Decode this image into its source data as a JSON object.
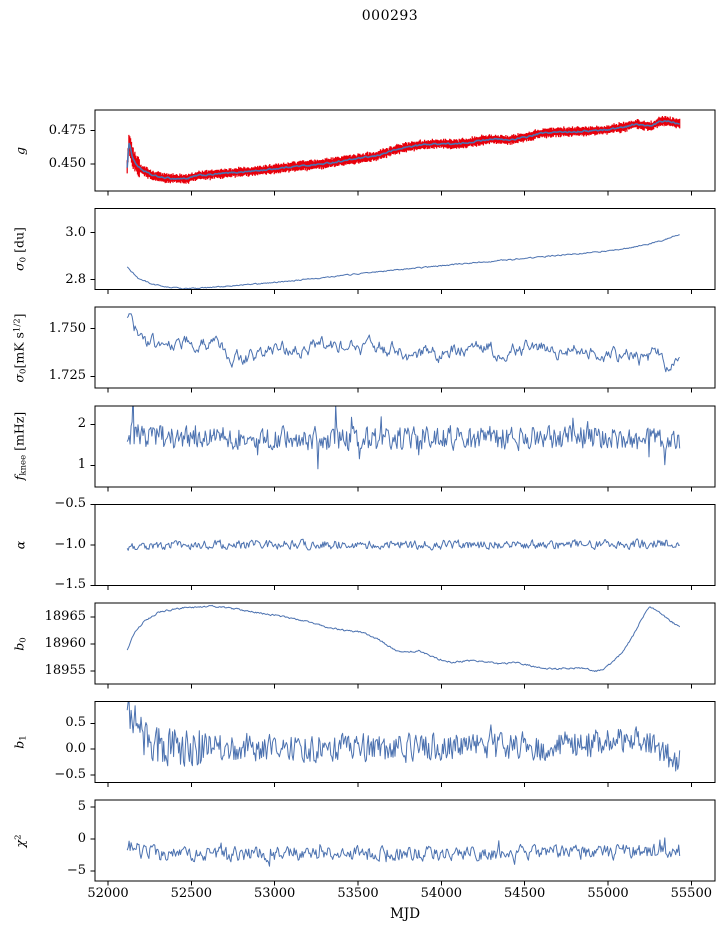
{
  "chart_data": {
    "type": "line",
    "title": "000293",
    "xlabel": "MJD",
    "xlim": [
      51922,
      55642
    ],
    "data_start_mjd": 52115,
    "data_end_mjd": 55430,
    "line_color": "#4c72b0",
    "error_color": "#e8000b",
    "axis_color": "#000000",
    "text_color": "#000000",
    "grid": false,
    "legend": "none",
    "xticks": [
      {
        "v": 52000,
        "label": "52000"
      },
      {
        "v": 52500,
        "label": "52500"
      },
      {
        "v": 53000,
        "label": "53000"
      },
      {
        "v": 53500,
        "label": "53500"
      },
      {
        "v": 54000,
        "label": "54000"
      },
      {
        "v": 54500,
        "label": "54500"
      },
      {
        "v": 55000,
        "label": "55000"
      },
      {
        "v": 55500,
        "label": "55500"
      }
    ],
    "panels": [
      {
        "name": "g",
        "ylabel_segments": [
          {
            "t": "g",
            "i": true
          }
        ],
        "ylim": [
          0.4295,
          0.4905
        ],
        "yticks": [
          {
            "v": 0.45,
            "label": "0.450"
          },
          {
            "v": 0.475,
            "label": "0.475"
          }
        ],
        "color": "#4c72b0",
        "line_width": 1.6,
        "noise": {
          "amp": 0.0005,
          "rho": 0.5
        },
        "red_band": {
          "half": 0.0022,
          "jitter": 0.0016,
          "center_jitter": 0.0012,
          "wide_until": 52190,
          "wide_factor": 2.2,
          "color": "#e8000b"
        },
        "trend": [
          [
            52115,
            0.4475
          ],
          [
            52125,
            0.4655
          ],
          [
            52135,
            0.462
          ],
          [
            52145,
            0.456
          ],
          [
            52160,
            0.4515
          ],
          [
            52180,
            0.448
          ],
          [
            52210,
            0.445
          ],
          [
            52260,
            0.4415
          ],
          [
            52330,
            0.4395
          ],
          [
            52400,
            0.4388
          ],
          [
            52480,
            0.439
          ],
          [
            52540,
            0.4412
          ],
          [
            52600,
            0.4416
          ],
          [
            52700,
            0.4428
          ],
          [
            52800,
            0.4438
          ],
          [
            52900,
            0.4448
          ],
          [
            53000,
            0.4462
          ],
          [
            53100,
            0.4478
          ],
          [
            53200,
            0.4488
          ],
          [
            53300,
            0.45
          ],
          [
            53400,
            0.452
          ],
          [
            53500,
            0.454
          ],
          [
            53600,
            0.4556
          ],
          [
            53700,
            0.4596
          ],
          [
            53800,
            0.4628
          ],
          [
            53900,
            0.4645
          ],
          [
            54000,
            0.4652
          ],
          [
            54100,
            0.4648
          ],
          [
            54200,
            0.4668
          ],
          [
            54300,
            0.4688
          ],
          [
            54400,
            0.4678
          ],
          [
            54500,
            0.4698
          ],
          [
            54600,
            0.473
          ],
          [
            54700,
            0.4738
          ],
          [
            54800,
            0.4743
          ],
          [
            54900,
            0.4748
          ],
          [
            55000,
            0.4758
          ],
          [
            55100,
            0.4778
          ],
          [
            55160,
            0.4798
          ],
          [
            55220,
            0.4788
          ],
          [
            55260,
            0.4782
          ],
          [
            55310,
            0.4818
          ],
          [
            55360,
            0.4822
          ],
          [
            55430,
            0.4802
          ]
        ]
      },
      {
        "name": "sigma0_du",
        "ylabel_segments": [
          {
            "t": "σ",
            "i": true
          },
          {
            "t": "0",
            "sub": true
          },
          {
            "t": " [du]"
          }
        ],
        "ylim": [
          2.757,
          3.103
        ],
        "yticks": [
          {
            "v": 2.8,
            "label": "2.8"
          },
          {
            "v": 3.0,
            "label": "3.0"
          }
        ],
        "color": "#4c72b0",
        "line_width": 1.0,
        "noise": {
          "amp": 0.0022,
          "rho": 0.45
        },
        "trend": [
          [
            52115,
            2.852
          ],
          [
            52180,
            2.806
          ],
          [
            52260,
            2.782
          ],
          [
            52350,
            2.768
          ],
          [
            52450,
            2.762
          ],
          [
            52550,
            2.763
          ],
          [
            52650,
            2.768
          ],
          [
            52800,
            2.776
          ],
          [
            53000,
            2.788
          ],
          [
            53200,
            2.801
          ],
          [
            53400,
            2.817
          ],
          [
            53600,
            2.832
          ],
          [
            53800,
            2.845
          ],
          [
            54000,
            2.859
          ],
          [
            54200,
            2.872
          ],
          [
            54400,
            2.884
          ],
          [
            54600,
            2.897
          ],
          [
            54800,
            2.909
          ],
          [
            55000,
            2.922
          ],
          [
            55150,
            2.938
          ],
          [
            55250,
            2.952
          ],
          [
            55350,
            2.972
          ],
          [
            55430,
            2.993
          ]
        ]
      },
      {
        "name": "sigma0_mK",
        "ylabel_segments": [
          {
            "t": "σ",
            "i": true
          },
          {
            "t": "0",
            "sub": true
          },
          {
            "t": "[mK s"
          },
          {
            "t": "1/2",
            "sup": true
          },
          {
            "t": "]"
          }
        ],
        "ylim": [
          1.7188,
          1.7612
        ],
        "yticks": [
          {
            "v": 1.725,
            "label": "1.725"
          },
          {
            "v": 1.75,
            "label": "1.750"
          }
        ],
        "color": "#4c72b0",
        "line_width": 1.0,
        "noise": {
          "amp": 0.003,
          "rho": 0.7
        },
        "trend": [
          [
            52115,
            1.7565
          ],
          [
            52150,
            1.752
          ],
          [
            52200,
            1.7428
          ],
          [
            52300,
            1.7415
          ],
          [
            52400,
            1.7432
          ],
          [
            52500,
            1.744
          ],
          [
            52600,
            1.7408
          ],
          [
            52700,
            1.738
          ],
          [
            52800,
            1.7342
          ],
          [
            52900,
            1.736
          ],
          [
            53000,
            1.7392
          ],
          [
            53100,
            1.7378
          ],
          [
            53200,
            1.74
          ],
          [
            53300,
            1.742
          ],
          [
            53400,
            1.7408
          ],
          [
            53500,
            1.7392
          ],
          [
            53600,
            1.741
          ],
          [
            53700,
            1.739
          ],
          [
            53800,
            1.7362
          ],
          [
            53900,
            1.738
          ],
          [
            54000,
            1.7372
          ],
          [
            54100,
            1.7392
          ],
          [
            54200,
            1.7418
          ],
          [
            54300,
            1.739
          ],
          [
            54400,
            1.7372
          ],
          [
            54500,
            1.7392
          ],
          [
            54600,
            1.7408
          ],
          [
            54700,
            1.7382
          ],
          [
            54800,
            1.7392
          ],
          [
            54900,
            1.7372
          ],
          [
            55000,
            1.7362
          ],
          [
            55100,
            1.7372
          ],
          [
            55200,
            1.7342
          ],
          [
            55300,
            1.7362
          ],
          [
            55360,
            1.7312
          ],
          [
            55430,
            1.7295
          ]
        ]
      },
      {
        "name": "f_knee",
        "ylabel_segments": [
          {
            "t": "f",
            "i": true
          },
          {
            "t": "knee",
            "sub": true
          },
          {
            "t": " [mHz]"
          }
        ],
        "ylim": [
          0.48,
          2.45
        ],
        "yticks": [
          {
            "v": 1,
            "label": "1"
          },
          {
            "v": 2,
            "label": "2"
          }
        ],
        "color": "#4c72b0",
        "line_width": 1.0,
        "noise": {
          "amp": 0.27,
          "rho": 0.15,
          "spike_prob": 0.035,
          "spike_amp": 0.7
        },
        "events": [
          [
            52150,
            0.8
          ]
        ],
        "trend": [
          [
            52115,
            1.8
          ],
          [
            52200,
            1.72
          ],
          [
            52400,
            1.68
          ],
          [
            53000,
            1.66
          ],
          [
            54000,
            1.65
          ],
          [
            54700,
            1.7
          ],
          [
            55000,
            1.68
          ],
          [
            55430,
            1.6
          ]
        ]
      },
      {
        "name": "alpha",
        "ylabel_segments": [
          {
            "t": "α",
            "i": true
          }
        ],
        "ylim": [
          -1.5,
          -0.5
        ],
        "yticks": [
          {
            "v": -1.5,
            "label": "−1.5"
          },
          {
            "v": -1.0,
            "label": "−1.0"
          },
          {
            "v": -0.5,
            "label": "−0.5"
          }
        ],
        "color": "#4c72b0",
        "line_width": 1.0,
        "noise": {
          "amp": 0.05,
          "rho": 0.35
        },
        "trend": [
          [
            52115,
            -1.005
          ],
          [
            52500,
            -1.0
          ],
          [
            53000,
            -0.992
          ],
          [
            53500,
            -1.0
          ],
          [
            54000,
            -0.996
          ],
          [
            54500,
            -1.0
          ],
          [
            55000,
            -0.993
          ],
          [
            55430,
            -0.98
          ]
        ]
      },
      {
        "name": "b0",
        "ylabel_segments": [
          {
            "t": "b",
            "i": true
          },
          {
            "t": "0",
            "sub": true
          }
        ],
        "ylim": [
          18952.6,
          18967.6
        ],
        "yticks": [
          {
            "v": 18955,
            "label": "18955"
          },
          {
            "v": 18960,
            "label": "18960"
          },
          {
            "v": 18965,
            "label": "18965"
          }
        ],
        "color": "#4c72b0",
        "line_width": 1.0,
        "noise": {
          "amp": 0.14,
          "rho": 0.45
        },
        "trend": [
          [
            52115,
            18959.0
          ],
          [
            52160,
            18962.2
          ],
          [
            52220,
            18964.3
          ],
          [
            52300,
            18965.8
          ],
          [
            52400,
            18966.5
          ],
          [
            52500,
            18966.8
          ],
          [
            52620,
            18967.0
          ],
          [
            52720,
            18966.7
          ],
          [
            52820,
            18966.2
          ],
          [
            52920,
            18965.7
          ],
          [
            53020,
            18965.2
          ],
          [
            53120,
            18964.7
          ],
          [
            53220,
            18963.9
          ],
          [
            53320,
            18963.1
          ],
          [
            53420,
            18962.5
          ],
          [
            53520,
            18962.2
          ],
          [
            53620,
            18960.9
          ],
          [
            53720,
            18958.9
          ],
          [
            53800,
            18958.5
          ],
          [
            53870,
            18958.8
          ],
          [
            53960,
            18957.4
          ],
          [
            54060,
            18956.6
          ],
          [
            54160,
            18956.9
          ],
          [
            54260,
            18956.8
          ],
          [
            54360,
            18956.3
          ],
          [
            54460,
            18956.6
          ],
          [
            54560,
            18955.8
          ],
          [
            54660,
            18955.4
          ],
          [
            54760,
            18955.5
          ],
          [
            54860,
            18955.6
          ],
          [
            54920,
            18954.9
          ],
          [
            54970,
            18955.3
          ],
          [
            55030,
            18956.8
          ],
          [
            55090,
            18958.6
          ],
          [
            55150,
            18961.5
          ],
          [
            55200,
            18964.6
          ],
          [
            55250,
            18966.9
          ],
          [
            55300,
            18966.2
          ],
          [
            55360,
            18964.6
          ],
          [
            55430,
            18963.1
          ]
        ]
      },
      {
        "name": "b1",
        "ylabel_segments": [
          {
            "t": "b",
            "i": true
          },
          {
            "t": "1",
            "sub": true
          }
        ],
        "ylim": [
          -0.65,
          0.92
        ],
        "yticks": [
          {
            "v": -0.5,
            "label": "−0.5"
          },
          {
            "v": 0.0,
            "label": "0.0"
          },
          {
            "v": 0.5,
            "label": "0.5"
          }
        ],
        "color": "#4c72b0",
        "line_width": 1.0,
        "noise": {
          "amp": 0.26,
          "rho": 0.2,
          "spike_prob": 0.05,
          "spike_amp": 0.3,
          "early_boost": [
            52600,
            1.5
          ]
        },
        "trend": [
          [
            52115,
            0.76
          ],
          [
            52150,
            0.55
          ],
          [
            52200,
            0.28
          ],
          [
            52260,
            0.12
          ],
          [
            52350,
            0.06
          ],
          [
            52500,
            0.05
          ],
          [
            53000,
            0.03
          ],
          [
            53600,
            0.02
          ],
          [
            54200,
            0.03
          ],
          [
            54700,
            0.06
          ],
          [
            54950,
            0.12
          ],
          [
            55100,
            0.22
          ],
          [
            55200,
            0.26
          ],
          [
            55280,
            0.05
          ],
          [
            55340,
            -0.12
          ],
          [
            55430,
            -0.25
          ]
        ]
      },
      {
        "name": "chi2",
        "ylabel_segments": [
          {
            "t": "χ",
            "i": true
          },
          {
            "t": "2",
            "sup": true
          }
        ],
        "ylim": [
          -6.6,
          6.1
        ],
        "yticks": [
          {
            "v": -5,
            "label": "−5"
          },
          {
            "v": 0,
            "label": "0"
          },
          {
            "v": 5,
            "label": "5"
          }
        ],
        "color": "#4c72b0",
        "line_width": 1.0,
        "noise": {
          "amp": 1.0,
          "rho": 0.35,
          "spike_prob": 0.03,
          "spike_amp": 1.4
        },
        "trend": [
          [
            52115,
            -1.1
          ],
          [
            52200,
            -1.9
          ],
          [
            52350,
            -2.3
          ],
          [
            53000,
            -2.3
          ],
          [
            54000,
            -2.2
          ],
          [
            55000,
            -2.1
          ],
          [
            55430,
            -1.8
          ]
        ]
      }
    ]
  }
}
